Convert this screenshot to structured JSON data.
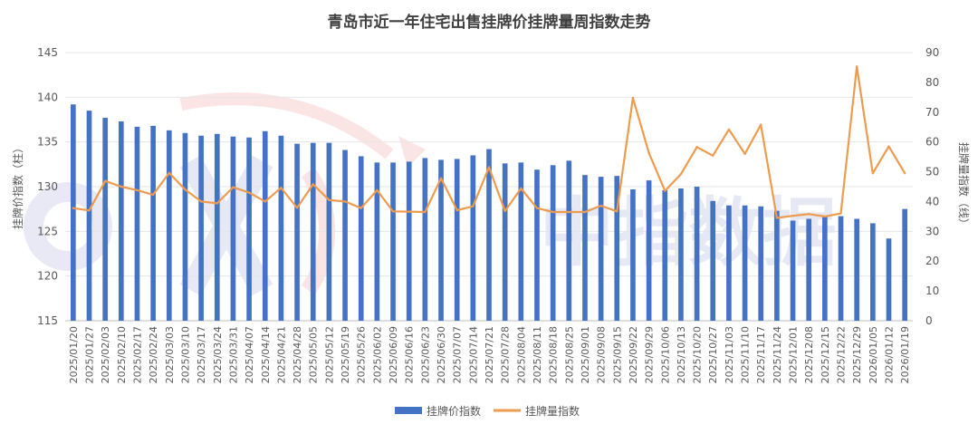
{
  "chart_data": {
    "type": "bar+line",
    "title": "青岛市近一年住宅出售挂牌价挂牌量周指数走势",
    "left_axis_label": "挂牌价指数（柱）",
    "right_axis_label": "挂牌量指数（线）",
    "watermark": "中指数据",
    "left_axis": {
      "min": 115,
      "max": 145,
      "ticks": [
        "115",
        "120",
        "125",
        "130",
        "135",
        "140",
        "145"
      ]
    },
    "right_axis": {
      "min": 0,
      "max": 90,
      "ticks": [
        "0",
        "10",
        "20",
        "30",
        "40",
        "50",
        "60",
        "70",
        "80",
        "90"
      ]
    },
    "grid": true,
    "legend_position": "bottom",
    "categories": [
      "2025/01/20",
      "2025/01/27",
      "2025/02/03",
      "2025/02/10",
      "2025/02/17",
      "2025/02/24",
      "2025/03/03",
      "2025/03/10",
      "2025/03/17",
      "2025/03/24",
      "2025/03/31",
      "2025/04/07",
      "2025/04/14",
      "2025/04/21",
      "2025/04/28",
      "2025/05/05",
      "2025/05/12",
      "2025/05/19",
      "2025/05/26",
      "2025/06/02",
      "2025/06/09",
      "2025/06/16",
      "2025/06/23",
      "2025/06/30",
      "2025/07/07",
      "2025/07/14",
      "2025/07/21",
      "2025/07/28",
      "2025/08/04",
      "2025/08/11",
      "2025/08/18",
      "2025/08/25",
      "2025/09/01",
      "2025/09/08",
      "2025/09/15",
      "2025/09/22",
      "2025/09/29",
      "2025/10/06",
      "2025/10/13",
      "2025/10/20",
      "2025/10/27",
      "2025/11/03",
      "2025/11/10",
      "2025/11/17",
      "2025/11/24",
      "2025/12/01",
      "2025/12/08",
      "2025/12/15",
      "2025/12/22",
      "2025/12/29",
      "2026/01/05",
      "2026/01/12",
      "2026/01/19"
    ],
    "series": [
      {
        "name": "挂牌价指数",
        "type": "bar",
        "axis": "left",
        "color": "#4472C4",
        "values": [
          139.2,
          138.5,
          137.7,
          137.3,
          136.7,
          136.8,
          136.3,
          136.0,
          135.7,
          135.9,
          135.6,
          135.5,
          136.2,
          135.7,
          134.8,
          134.9,
          134.9,
          134.1,
          133.4,
          132.7,
          132.7,
          132.8,
          133.2,
          133.0,
          133.1,
          133.5,
          134.2,
          132.6,
          132.7,
          131.9,
          132.4,
          132.9,
          131.3,
          131.1,
          131.2,
          129.7,
          130.7,
          129.6,
          129.8,
          130.0,
          128.4,
          127.9,
          127.9,
          127.8,
          127.3,
          126.2,
          126.4,
          126.7,
          126.7,
          126.4,
          125.9,
          124.2,
          127.5
        ]
      },
      {
        "name": "挂牌量指数",
        "type": "line",
        "axis": "right",
        "color": "#ED9B4E",
        "values": [
          37.8,
          37.0,
          46.9,
          45.0,
          43.8,
          42.3,
          49.6,
          44.0,
          40.0,
          39.4,
          44.8,
          43.0,
          40.0,
          44.6,
          37.9,
          45.8,
          40.5,
          40.0,
          37.8,
          43.8,
          36.7,
          36.6,
          36.5,
          47.8,
          37.1,
          38.4,
          51.5,
          36.8,
          44.4,
          37.8,
          36.5,
          36.5,
          36.5,
          38.6,
          36.7,
          74.8,
          56.3,
          43.6,
          49.2,
          58.3,
          55.4,
          64.2,
          56.0,
          65.8,
          34.5,
          35.2,
          35.8,
          35.0,
          36.0,
          85.3,
          49.5,
          58.5,
          49.5
        ]
      }
    ]
  }
}
